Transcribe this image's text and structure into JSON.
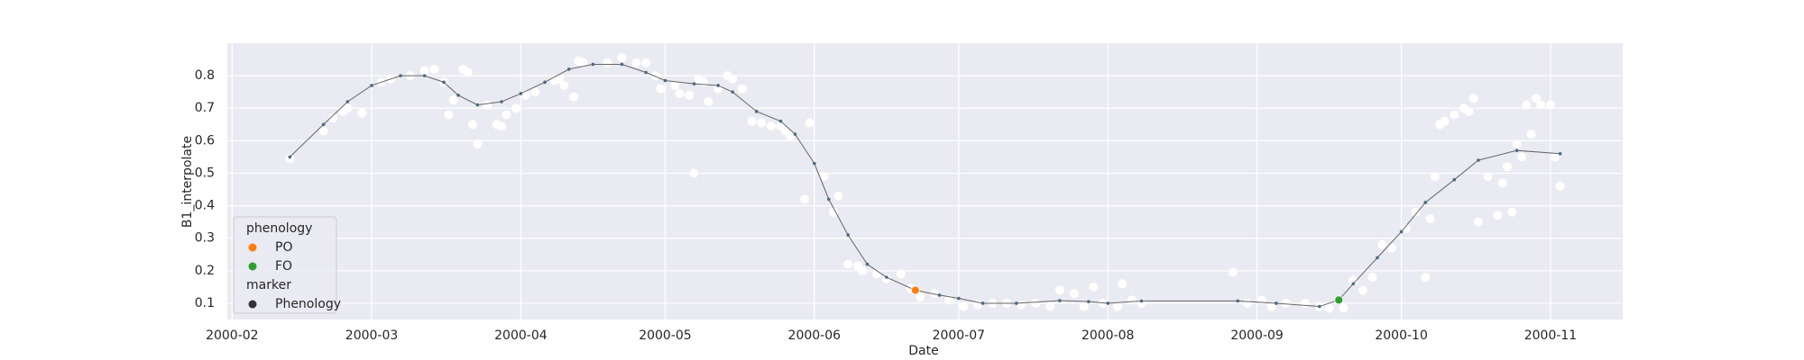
{
  "chart_data": {
    "type": "line",
    "x_label": "Date",
    "y_label": "B1_interpolate",
    "background": "#eaeaf2",
    "grid": true,
    "xlim": [
      "2000-01-31",
      "2000-11-16"
    ],
    "xticks": [
      {
        "value": "2000-02-01",
        "label": "2000-02"
      },
      {
        "value": "2000-03-01",
        "label": "2000-03"
      },
      {
        "value": "2000-04-01",
        "label": "2000-04"
      },
      {
        "value": "2000-05-01",
        "label": "2000-05"
      },
      {
        "value": "2000-06-01",
        "label": "2000-06"
      },
      {
        "value": "2000-07-01",
        "label": "2000-07"
      },
      {
        "value": "2000-08-01",
        "label": "2000-08"
      },
      {
        "value": "2000-09-01",
        "label": "2000-09"
      },
      {
        "value": "2000-10-01",
        "label": "2000-10"
      },
      {
        "value": "2000-11-01",
        "label": "2000-11"
      }
    ],
    "ylim": [
      0.05,
      0.9
    ],
    "yticks": [
      0.1,
      0.2,
      0.3,
      0.4,
      0.5,
      0.6,
      0.7,
      0.8
    ],
    "observations": {
      "color": "#ffffff",
      "x": [
        "2000-02-13",
        "2000-02-20",
        "2000-02-22",
        "2000-02-24",
        "2000-02-25",
        "2000-02-28",
        "2000-03-03",
        "2000-03-05",
        "2000-03-09",
        "2000-03-12",
        "2000-03-14",
        "2000-03-16",
        "2000-03-17",
        "2000-03-18",
        "2000-03-20",
        "2000-03-21",
        "2000-03-22",
        "2000-03-23",
        "2000-03-25",
        "2000-03-27",
        "2000-03-28",
        "2000-03-29",
        "2000-03-31",
        "2000-04-02",
        "2000-04-04",
        "2000-04-08",
        "2000-04-09",
        "2000-04-10",
        "2000-04-12",
        "2000-04-13",
        "2000-04-14",
        "2000-04-19",
        "2000-04-22",
        "2000-04-25",
        "2000-04-27",
        "2000-04-29",
        "2000-04-30",
        "2000-05-03",
        "2000-05-04",
        "2000-05-06",
        "2000-05-07",
        "2000-05-08",
        "2000-05-09",
        "2000-05-10",
        "2000-05-12",
        "2000-05-14",
        "2000-05-15",
        "2000-05-17",
        "2000-05-19",
        "2000-05-21",
        "2000-05-23",
        "2000-05-25",
        "2000-05-26",
        "2000-05-27",
        "2000-05-30",
        "2000-05-31",
        "2000-06-03",
        "2000-06-05",
        "2000-06-06",
        "2000-06-08",
        "2000-06-10",
        "2000-06-11",
        "2000-06-14",
        "2000-06-16",
        "2000-06-19",
        "2000-06-21",
        "2000-06-23",
        "2000-06-26",
        "2000-06-29",
        "2000-07-02",
        "2000-07-05",
        "2000-07-08",
        "2000-07-11",
        "2000-07-14",
        "2000-07-17",
        "2000-07-20",
        "2000-07-22",
        "2000-07-25",
        "2000-07-27",
        "2000-07-29",
        "2000-07-31",
        "2000-08-03",
        "2000-08-04",
        "2000-08-06",
        "2000-08-08",
        "2000-08-27",
        "2000-08-30",
        "2000-09-02",
        "2000-09-04",
        "2000-09-07",
        "2000-09-11",
        "2000-09-14",
        "2000-09-16",
        "2000-09-19",
        "2000-09-21",
        "2000-09-23",
        "2000-09-25",
        "2000-09-27",
        "2000-09-29",
        "2000-10-02",
        "2000-10-04",
        "2000-10-06",
        "2000-10-07",
        "2000-10-08",
        "2000-10-09",
        "2000-10-10",
        "2000-10-12",
        "2000-10-14",
        "2000-10-15",
        "2000-10-16",
        "2000-10-17",
        "2000-10-19",
        "2000-10-21",
        "2000-10-22",
        "2000-10-23",
        "2000-10-24",
        "2000-10-25",
        "2000-10-26",
        "2000-10-27",
        "2000-10-28",
        "2000-10-29",
        "2000-10-30",
        "2000-11-01",
        "2000-11-02",
        "2000-11-03"
      ],
      "values": [
        0.545,
        0.63,
        0.67,
        0.69,
        0.7,
        0.685,
        0.78,
        0.79,
        0.8,
        0.815,
        0.82,
        0.78,
        0.68,
        0.725,
        0.82,
        0.81,
        0.65,
        0.59,
        0.71,
        0.65,
        0.645,
        0.68,
        0.7,
        0.74,
        0.75,
        0.785,
        0.79,
        0.77,
        0.735,
        0.845,
        0.84,
        0.84,
        0.855,
        0.84,
        0.84,
        0.8,
        0.76,
        0.77,
        0.745,
        0.74,
        0.5,
        0.79,
        0.78,
        0.72,
        0.76,
        0.8,
        0.79,
        0.76,
        0.66,
        0.655,
        0.645,
        0.645,
        0.63,
        0.615,
        0.42,
        0.655,
        0.49,
        0.38,
        0.43,
        0.22,
        0.215,
        0.2,
        0.19,
        0.175,
        0.19,
        0.145,
        0.12,
        0.13,
        0.11,
        0.09,
        0.095,
        0.1,
        0.1,
        0.095,
        0.1,
        0.09,
        0.14,
        0.13,
        0.09,
        0.15,
        0.1,
        0.09,
        0.16,
        0.11,
        0.1,
        0.195,
        0.1,
        0.11,
        0.09,
        0.1,
        0.1,
        0.09,
        0.085,
        0.085,
        0.17,
        0.14,
        0.18,
        0.28,
        0.27,
        0.33,
        0.38,
        0.18,
        0.36,
        0.49,
        0.65,
        0.66,
        0.68,
        0.7,
        0.69,
        0.73,
        0.35,
        0.49,
        0.37,
        0.47,
        0.52,
        0.38,
        0.59,
        0.55,
        0.71,
        0.62,
        0.73,
        0.71,
        0.71,
        0.55,
        0.46
      ]
    },
    "interpolated": {
      "color": "#4c6a80",
      "x": [
        "2000-02-13",
        "2000-02-20",
        "2000-02-25",
        "2000-03-01",
        "2000-03-07",
        "2000-03-12",
        "2000-03-16",
        "2000-03-19",
        "2000-03-23",
        "2000-03-28",
        "2000-04-01",
        "2000-04-06",
        "2000-04-11",
        "2000-04-16",
        "2000-04-22",
        "2000-04-27",
        "2000-05-01",
        "2000-05-07",
        "2000-05-12",
        "2000-05-15",
        "2000-05-20",
        "2000-05-25",
        "2000-05-28",
        "2000-06-01",
        "2000-06-04",
        "2000-06-08",
        "2000-06-12",
        "2000-06-16",
        "2000-06-22",
        "2000-06-27",
        "2000-07-01",
        "2000-07-06",
        "2000-07-13",
        "2000-07-22",
        "2000-07-28",
        "2000-08-01",
        "2000-08-08",
        "2000-08-28",
        "2000-09-05",
        "2000-09-14",
        "2000-09-18",
        "2000-09-21",
        "2000-09-26",
        "2000-10-01",
        "2000-10-06",
        "2000-10-12",
        "2000-10-17",
        "2000-10-25",
        "2000-11-03"
      ],
      "values": [
        0.55,
        0.65,
        0.72,
        0.77,
        0.8,
        0.8,
        0.78,
        0.74,
        0.71,
        0.72,
        0.745,
        0.78,
        0.82,
        0.835,
        0.835,
        0.81,
        0.785,
        0.775,
        0.77,
        0.75,
        0.69,
        0.66,
        0.62,
        0.53,
        0.42,
        0.31,
        0.22,
        0.18,
        0.14,
        0.125,
        0.115,
        0.1,
        0.1,
        0.108,
        0.105,
        0.1,
        0.107,
        0.107,
        0.1,
        0.09,
        0.11,
        0.16,
        0.24,
        0.32,
        0.41,
        0.48,
        0.54,
        0.57,
        0.56
      ]
    },
    "phenology": [
      {
        "name": "PO",
        "color": "#ff7f0e",
        "x": "2000-06-22",
        "value": 0.14
      },
      {
        "name": "FO",
        "color": "#2ca02c",
        "x": "2000-09-18",
        "value": 0.11
      }
    ],
    "legend": {
      "corner": "lower left",
      "title": "phenology",
      "marker_title": "marker",
      "marker_label": "Phenology",
      "marker_color": "#333333"
    }
  }
}
